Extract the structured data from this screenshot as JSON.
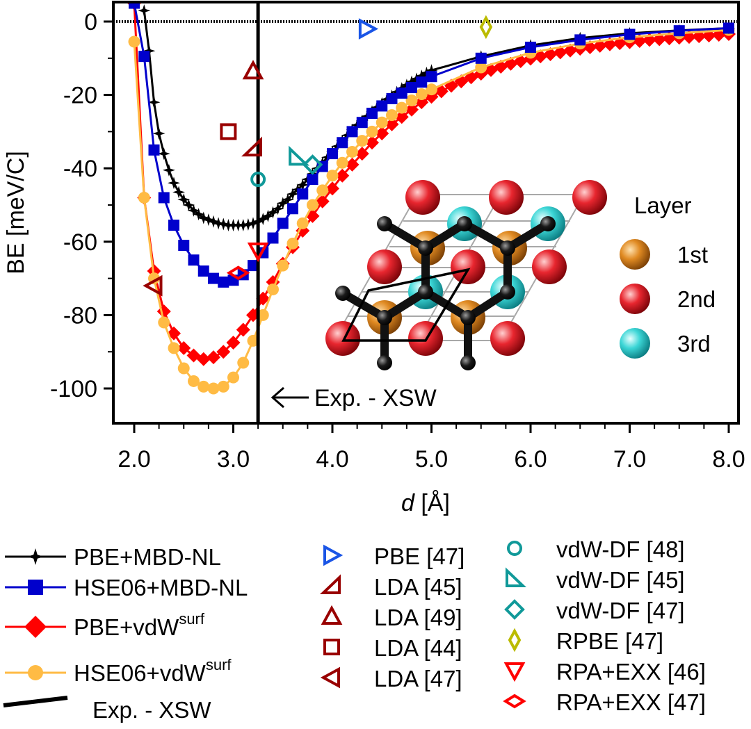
{
  "chart_data": {
    "type": "line",
    "xlabel_italic": "d",
    "xlabel_unit": " [Å]",
    "ylabel": "BE [meV/C]",
    "xlim": [
      1.8,
      8.1
    ],
    "ylim": [
      -110,
      5
    ],
    "xticks": [
      2.0,
      3.0,
      4.0,
      5.0,
      6.0,
      7.0,
      8.0
    ],
    "xtick_labels": [
      "2.0",
      "3.0",
      "4.0",
      "5.0",
      "6.0",
      "7.0",
      "8.0"
    ],
    "yticks": [
      0,
      -20,
      -40,
      -60,
      -80,
      -100
    ],
    "ytick_labels": [
      "0",
      "-20",
      "-40",
      "-60",
      "-80",
      "-100"
    ],
    "zero_line": "dotted",
    "experiment": {
      "x": 3.25,
      "label": "Exp. - XSW",
      "annotation": "Exp. - XSW",
      "color": "#000000"
    },
    "series": [
      {
        "name": "PBE+MBD-NL",
        "color": "#000000",
        "marker": "star",
        "x": [
          2.1,
          2.15,
          2.2,
          2.25,
          2.3,
          2.35,
          2.4,
          2.45,
          2.5,
          2.55,
          2.6,
          2.65,
          2.7,
          2.75,
          2.8,
          2.85,
          2.9,
          2.95,
          3.0,
          3.05,
          3.1,
          3.15,
          3.2,
          3.25,
          3.3,
          3.35,
          3.4,
          3.45,
          3.5,
          3.55,
          3.6,
          3.65,
          3.7,
          3.75,
          3.8,
          3.85,
          3.9,
          3.95,
          4.0,
          4.05,
          4.1,
          4.15,
          4.2,
          4.25,
          4.3,
          4.35,
          4.4,
          4.45,
          4.5,
          4.55,
          4.6,
          4.65,
          4.7,
          4.75,
          4.8,
          4.85,
          4.9,
          4.95,
          5.0,
          5.5,
          6.0,
          6.5,
          7.0,
          7.5,
          8.0
        ],
        "y": [
          3,
          -8,
          -22,
          -30.5,
          -36,
          -40.5,
          -44,
          -46.5,
          -48.5,
          -50,
          -51.5,
          -52.5,
          -53.5,
          -54,
          -54.5,
          -55,
          -55.2,
          -55.5,
          -55.5,
          -55.5,
          -55.5,
          -55.3,
          -55,
          -54.5,
          -53.8,
          -53,
          -52,
          -51,
          -49.5,
          -48.5,
          -47,
          -45.8,
          -44.5,
          -43,
          -41.5,
          -40,
          -38.5,
          -37,
          -35.5,
          -34,
          -32.5,
          -31,
          -29.5,
          -28.2,
          -27,
          -25.8,
          -24.5,
          -23.4,
          -22.3,
          -21.2,
          -20.2,
          -19.2,
          -18.2,
          -17.3,
          -16.4,
          -15.6,
          -14.8,
          -14,
          -13.3,
          -9.5,
          -6.5,
          -4.5,
          -3.2,
          -2.4,
          -1.8
        ]
      },
      {
        "name": "HSE06+MBD-NL",
        "color": "#0000cc",
        "marker": "square",
        "x": [
          2.0,
          2.1,
          2.2,
          2.3,
          2.4,
          2.5,
          2.6,
          2.7,
          2.8,
          2.9,
          3.0,
          3.1,
          3.2,
          3.3,
          3.4,
          3.5,
          3.6,
          3.7,
          3.8,
          3.9,
          4.0,
          4.1,
          4.2,
          4.3,
          4.4,
          4.5,
          4.6,
          4.7,
          4.8,
          4.9,
          5.0,
          5.5,
          6.0,
          6.5,
          7.0,
          7.5,
          8.0
        ],
        "y": [
          5,
          -9.5,
          -35,
          -48,
          -55.5,
          -61,
          -65,
          -68,
          -70,
          -71,
          -70.5,
          -69,
          -66.5,
          -63,
          -59,
          -55,
          -51,
          -47,
          -43,
          -39.5,
          -36,
          -33,
          -30,
          -27.5,
          -25,
          -23,
          -21,
          -19.5,
          -18,
          -16.5,
          -15,
          -10,
          -7,
          -5,
          -3.5,
          -2.5,
          -1.8
        ]
      },
      {
        "name": "PBE+vdW^surf",
        "color": "#ff0000",
        "marker": "diamond",
        "x": [
          2.0,
          2.1,
          2.2,
          2.3,
          2.4,
          2.5,
          2.6,
          2.7,
          2.8,
          2.9,
          3.0,
          3.1,
          3.2,
          3.3,
          3.4,
          3.5,
          3.6,
          3.7,
          3.8,
          3.9,
          4.0,
          4.1,
          4.2,
          4.3,
          4.4,
          4.5,
          4.6,
          4.7,
          4.8,
          4.9,
          5.0,
          5.1,
          5.2,
          5.3,
          5.4,
          5.5,
          5.6,
          5.7,
          5.8,
          5.9,
          6.0,
          6.1,
          6.2,
          6.3,
          6.4,
          6.5,
          6.6,
          6.7,
          6.8,
          6.9,
          7.0,
          7.1,
          7.2,
          7.3,
          7.4,
          7.5,
          7.6,
          7.7,
          7.8,
          7.9,
          8.0
        ],
        "y": [
          5,
          -48,
          -68,
          -79,
          -85,
          -89,
          -91,
          -92,
          -91.5,
          -90,
          -87.5,
          -84,
          -80,
          -75.5,
          -71,
          -66,
          -61.5,
          -57,
          -53,
          -49,
          -45.5,
          -42,
          -39,
          -36,
          -33,
          -30.5,
          -28,
          -26,
          -24,
          -22,
          -20.5,
          -19,
          -17.5,
          -16.3,
          -15.2,
          -14.2,
          -13.2,
          -12.3,
          -11.5,
          -10.8,
          -10.1,
          -9.5,
          -8.9,
          -8.4,
          -7.9,
          -7.4,
          -7,
          -6.6,
          -6.2,
          -5.9,
          -5.6,
          -5.3,
          -5,
          -4.8,
          -4.6,
          -4.4,
          -4.2,
          -4,
          -3.8,
          -3.6,
          -3.4
        ]
      },
      {
        "name": "HSE06+vdW^surf",
        "color": "#ffbb44",
        "marker": "circle",
        "x": [
          2.0,
          2.1,
          2.2,
          2.3,
          2.4,
          2.5,
          2.6,
          2.7,
          2.8,
          2.9,
          3.0,
          3.1,
          3.2,
          3.3,
          3.4,
          3.5,
          3.6,
          3.7,
          3.8,
          3.9,
          4.0,
          4.1,
          4.2,
          4.3,
          4.4,
          4.5,
          4.6,
          4.7,
          4.8,
          4.9,
          5.0,
          5.5,
          6.0,
          6.5,
          7.0,
          7.5,
          8.0
        ],
        "y": [
          -5.5,
          -48,
          -70,
          -82,
          -89,
          -94.5,
          -98,
          -99.5,
          -100,
          -99.5,
          -97,
          -93,
          -87,
          -80,
          -73,
          -66.5,
          -60.5,
          -55,
          -50,
          -46,
          -42,
          -38.5,
          -35.5,
          -32.5,
          -30,
          -27.5,
          -25.5,
          -23.5,
          -21.5,
          -19.8,
          -18.5,
          -12.5,
          -8.5,
          -6,
          -4.3,
          -3.2,
          -2.3
        ]
      }
    ],
    "reference_points": [
      {
        "label": "PBE [47]",
        "x": 4.35,
        "y": -2,
        "marker": "tri-right",
        "color": "#1a55e6"
      },
      {
        "label": "LDA [45]",
        "x": 3.2,
        "y": -34.5,
        "marker": "tri-ul",
        "color": "#990000"
      },
      {
        "label": "LDA [49]",
        "x": 3.2,
        "y": -13.5,
        "marker": "tri-up",
        "color": "#990000"
      },
      {
        "label": "LDA [44]",
        "x": 2.95,
        "y": -30,
        "marker": "square-open",
        "color": "#990000"
      },
      {
        "label": "LDA [47]",
        "x": 2.2,
        "y": -72,
        "marker": "tri-left",
        "color": "#990000"
      },
      {
        "label": "vdW-DF [48]",
        "x": 3.25,
        "y": -43,
        "marker": "circle-open",
        "color": "#109999"
      },
      {
        "label": "vdW-DF [45]",
        "x": 3.65,
        "y": -37,
        "marker": "tri-ll",
        "color": "#109999"
      },
      {
        "label": "vdW-DF  [47]",
        "x": 3.8,
        "y": -39,
        "marker": "diamond-open",
        "color": "#109999"
      },
      {
        "label": "RPBE [47]",
        "x": 5.55,
        "y": -1.5,
        "marker": "diamond-thin",
        "color": "#bbbb00"
      },
      {
        "label": "RPA+EXX [46]",
        "x": 3.25,
        "y": -62.5,
        "marker": "tri-down",
        "color": "#ff0000"
      },
      {
        "label": "RPA+EXX [47]",
        "x": 3.05,
        "y": -68.5,
        "marker": "diamond-wide",
        "color": "#ff0000"
      }
    ],
    "inset": {
      "layer_title": "Layer",
      "layers": [
        {
          "label": "1st",
          "color": "#e08a22"
        },
        {
          "label": "2nd",
          "color": "#e8262f"
        },
        {
          "label": "3rd",
          "color": "#3cd6d6"
        }
      ]
    },
    "legend": {
      "position": "bottom",
      "lines": [
        {
          "name": "PBE+MBD-NL"
        },
        {
          "name": "HSE06+MBD-NL"
        },
        {
          "base": "PBE+vdW",
          "sup": "surf"
        },
        {
          "base": "HSE06+vdW",
          "sup": "surf"
        },
        {
          "name": "Exp. - XSW"
        }
      ]
    }
  }
}
